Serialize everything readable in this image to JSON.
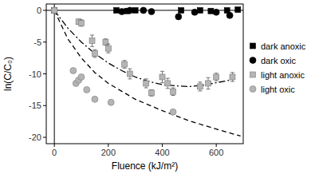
{
  "chart_data": {
    "type": "scatter",
    "x_label": "Fluence (kJ/m²)",
    "y_label": "ln(C/C₀)",
    "xlim": [
      -30,
      700
    ],
    "ylim": [
      -21,
      1
    ],
    "xticks": [
      0,
      200,
      400,
      600
    ],
    "yticks": [
      0,
      -5,
      -10,
      -15,
      -20
    ],
    "grid": false,
    "legend": "right",
    "series": [
      {
        "name": "dark anoxic",
        "color": "#000000",
        "marker": "square",
        "x": [
          0,
          230,
          270,
          300,
          470,
          540,
          580,
          640,
          680
        ],
        "values": [
          0,
          0,
          -0.1,
          0,
          0,
          0,
          -0.1,
          0,
          0.1
        ]
      },
      {
        "name": "dark oxic",
        "color": "#000000",
        "marker": "circle",
        "x": [
          0,
          250,
          280,
          330,
          360,
          460,
          520,
          600,
          650
        ],
        "values": [
          0,
          -0.2,
          0,
          0,
          -0.2,
          -1,
          -0.3,
          -0.3,
          -0.8
        ]
      },
      {
        "name": "light anoxic",
        "color": "#b5b5b5",
        "marker": "square",
        "x": [
          0,
          90,
          100,
          140,
          150,
          190,
          200,
          260,
          280,
          340,
          360,
          400,
          420,
          440,
          540,
          570,
          600,
          660
        ],
        "values": [
          0,
          -1.8,
          -2,
          -4.8,
          -6.8,
          -5,
          -6,
          -8.5,
          -10,
          -11.5,
          -13,
          -10.5,
          -11.5,
          -12.8,
          -12,
          -11.5,
          -10.5,
          -10.5
        ],
        "errors": [
          0.3,
          0.4,
          0.5,
          0.9,
          0.6,
          0.5,
          0.7,
          0.6,
          0.8,
          0.7,
          0.5,
          0.9,
          0.8,
          0.6,
          0.7,
          0.9,
          0.6,
          0.7
        ]
      },
      {
        "name": "light oxic",
        "color": "#b5b5b5",
        "marker": "circle",
        "x": [
          0,
          70,
          80,
          90,
          100,
          120,
          150,
          210,
          440
        ],
        "values": [
          0,
          -9.5,
          -11.5,
          -11,
          -10.5,
          -12.5,
          -14,
          -14.5,
          -16
        ]
      },
      {
        "type": "line",
        "line_style": "dashdot",
        "color": "#000000",
        "x": [
          0,
          50,
          100,
          150,
          200,
          250,
          300,
          350,
          400,
          450,
          500,
          550,
          600,
          650
        ],
        "values": [
          0,
          -2.8,
          -5,
          -6.8,
          -8.3,
          -9.5,
          -10.5,
          -11.2,
          -11.7,
          -11.9,
          -12,
          -11.8,
          -11.4,
          -11
        ]
      },
      {
        "type": "line",
        "line_style": "dashed",
        "color": "#000000",
        "x": [
          0,
          50,
          100,
          150,
          200,
          300,
          400,
          500,
          600,
          690
        ],
        "values": [
          0,
          -4.5,
          -7.5,
          -9.8,
          -11.5,
          -14,
          -15.8,
          -17.4,
          -18.7,
          -19.8
        ]
      }
    ]
  }
}
